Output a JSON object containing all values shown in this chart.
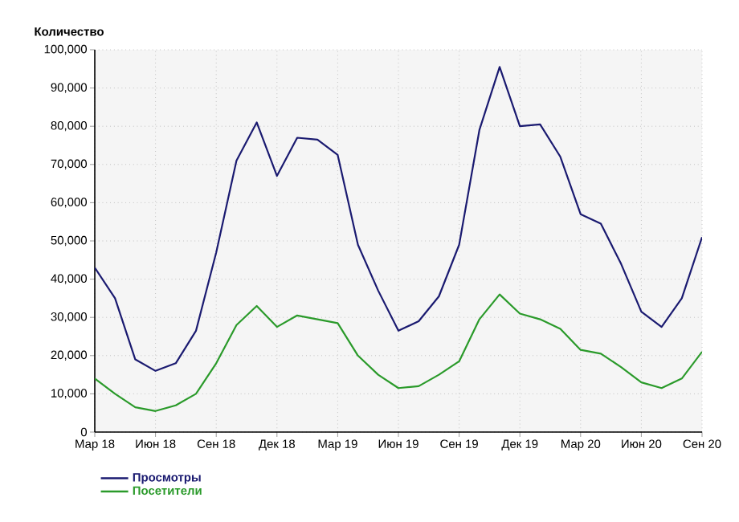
{
  "chart_data": {
    "type": "line",
    "ylabel": "Количество",
    "categories": [
      "Мар 18",
      null,
      null,
      "Июн 18",
      null,
      null,
      "Сен 18",
      null,
      null,
      "Дек 18",
      null,
      null,
      "Мар 19",
      null,
      null,
      "Июн 19",
      null,
      null,
      "Сен 19",
      null,
      null,
      "Дек 19",
      null,
      null,
      "Мар 20",
      null,
      null,
      "Июн 20",
      null,
      null,
      "Сен 20"
    ],
    "series": [
      {
        "name": "Просмотры",
        "color": "#1a1a70",
        "values": [
          43000,
          35000,
          19000,
          16000,
          18000,
          26500,
          47000,
          71000,
          81000,
          67000,
          77000,
          76500,
          72500,
          49000,
          37000,
          26500,
          29000,
          35500,
          49000,
          79000,
          95500,
          80000,
          80500,
          72000,
          57000,
          54500,
          44000,
          31500,
          27500,
          35000,
          51000
        ]
      },
      {
        "name": "Посетители",
        "color": "#2a9a2a",
        "values": [
          14000,
          10000,
          6500,
          5500,
          7000,
          10000,
          18000,
          28000,
          33000,
          27500,
          30500,
          29500,
          28500,
          20000,
          15000,
          11500,
          12000,
          15000,
          18500,
          29500,
          36000,
          31000,
          29500,
          27000,
          21500,
          20500,
          17000,
          13000,
          11500,
          14000,
          21000
        ]
      }
    ],
    "ylim": [
      0,
      100000
    ],
    "yticks": [
      0,
      {
        "value": 10000,
        "label": "10,000"
      },
      {
        "value": 20000,
        "label": "20,000"
      },
      {
        "value": 30000,
        "label": "30,000"
      },
      {
        "value": 40000,
        "label": "40,000"
      },
      {
        "value": 50000,
        "label": "50,000"
      },
      {
        "value": 60000,
        "label": "60,000"
      },
      {
        "value": 70000,
        "label": "70,000"
      },
      {
        "value": 80000,
        "label": "80,000"
      },
      {
        "value": 90000,
        "label": "90,000"
      },
      {
        "value": 100000,
        "label": "100,000"
      }
    ],
    "grid": true,
    "legend": "bottom",
    "marker": "none",
    "line_style": "solid"
  }
}
